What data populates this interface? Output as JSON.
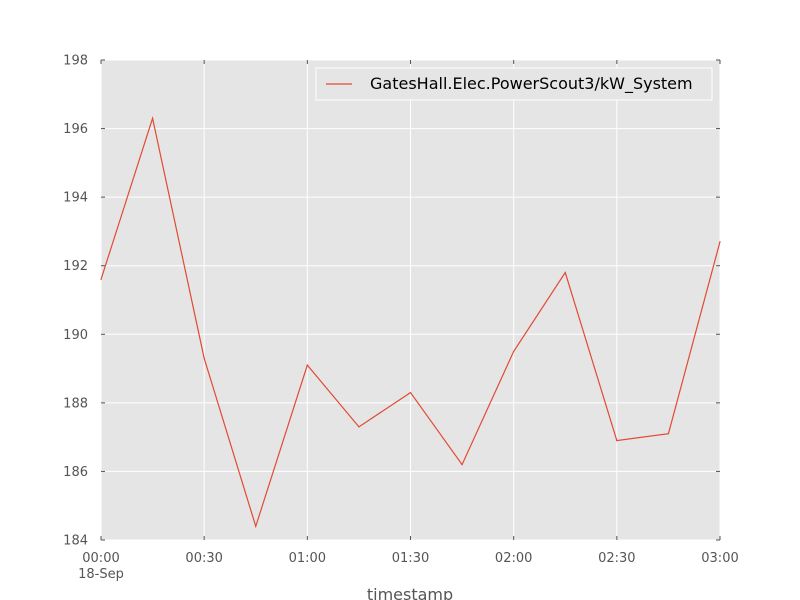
{
  "chart_data": {
    "type": "line",
    "title": "",
    "xlabel": "timestamp",
    "ylabel": "",
    "x_tick_labels": [
      "00:00",
      "00:30",
      "01:00",
      "01:30",
      "02:00",
      "02:30",
      "03:00"
    ],
    "x_tick_sublabel": "18-Sep",
    "y_tick_labels": [
      "184",
      "186",
      "188",
      "190",
      "192",
      "194",
      "196",
      "198"
    ],
    "ylim": [
      184,
      198
    ],
    "xlim": [
      "00:00",
      "03:00"
    ],
    "grid": true,
    "legend_position": "top-right",
    "x": [
      "00:00",
      "00:15",
      "00:30",
      "00:45",
      "01:00",
      "01:15",
      "01:30",
      "01:45",
      "02:00",
      "02:15",
      "02:30",
      "02:45",
      "03:00"
    ],
    "series": [
      {
        "name": "GatesHall.Elec.PowerScout3/kW_System",
        "color": "#e24a33",
        "values": [
          191.6,
          196.3,
          189.3,
          184.4,
          189.1,
          187.3,
          188.3,
          186.2,
          189.5,
          191.8,
          186.9,
          187.1,
          192.7
        ]
      }
    ],
    "colors": {
      "plot_background": "#e5e5e5",
      "grid": "#ffffff"
    }
  }
}
